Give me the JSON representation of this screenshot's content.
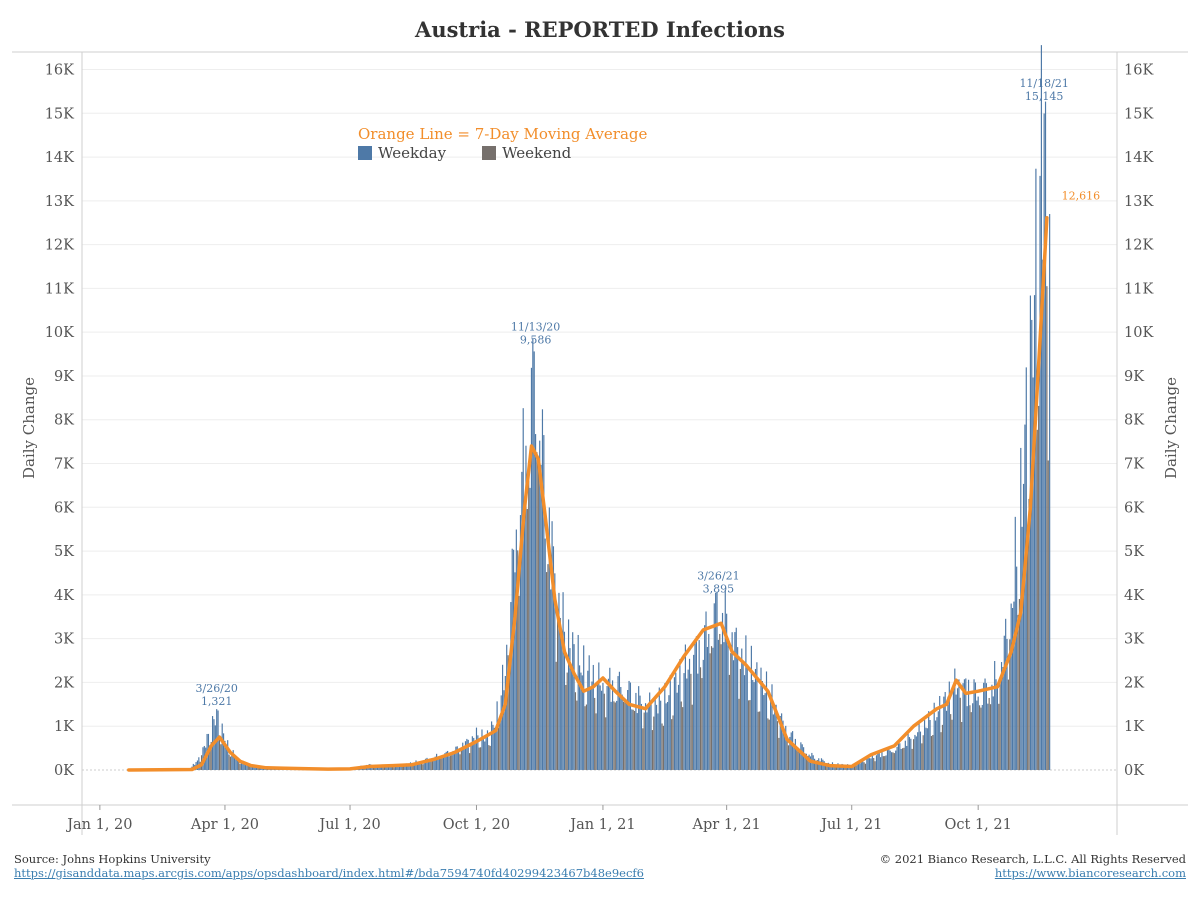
{
  "header": {
    "title": "Austria - REPORTED Infections"
  },
  "legend": {
    "title": "Orange Line = 7-Day Moving Average",
    "items": [
      {
        "label": "Weekday",
        "color": "#4e79a7"
      },
      {
        "label": "Weekend",
        "color": "#76706c"
      }
    ]
  },
  "footer": {
    "source_label": "Source: Johns Hopkins University",
    "source_link": "https://gisanddata.maps.arcgis.com/apps/opsdashboard/index.html#/bda7594740fd40299423467b48e9ecf6",
    "copyright": "© 2021 Bianco Research, L.L.C. All Rights Reserved",
    "site_link": "https://www.biancoresearch.com"
  },
  "chart_data": {
    "type": "bar",
    "title": "Austria - REPORTED Infections",
    "ylabel": "Daily Change",
    "ylabel_right": "Daily Change",
    "ylim": [
      -800,
      16400
    ],
    "y_ticks": [
      0,
      1000,
      2000,
      3000,
      4000,
      5000,
      6000,
      7000,
      8000,
      9000,
      10000,
      11000,
      12000,
      13000,
      14000,
      15000,
      16000
    ],
    "y_tick_labels": [
      "0K",
      "1K",
      "2K",
      "3K",
      "4K",
      "5K",
      "6K",
      "7K",
      "8K",
      "9K",
      "10K",
      "11K",
      "12K",
      "13K",
      "14K",
      "15K",
      "16K"
    ],
    "x_range": [
      "2019-12-19",
      "2022-01-10"
    ],
    "x_ticks": [
      "2020-01-01",
      "2020-04-01",
      "2020-07-01",
      "2020-10-01",
      "2021-01-01",
      "2021-04-01",
      "2021-07-01",
      "2021-10-01"
    ],
    "x_tick_labels": [
      "Jan 1, 20",
      "Apr 1, 20",
      "Jul 1, 20",
      "Oct 1, 20",
      "Jan 1, 21",
      "Apr 1, 21",
      "Jul 1, 21",
      "Oct 1, 21"
    ],
    "grid": true,
    "legend_position": "top-center",
    "colors": {
      "weekday": "#4e79a7",
      "weekend": "#76706c",
      "moving_average": "#f28e2b"
    },
    "series": [
      {
        "name": "Weekday",
        "kind": "daily bars (estimated envelope)",
        "x": [
          "2020-01-22",
          "2020-03-05",
          "2020-03-12",
          "2020-03-19",
          "2020-03-26",
          "2020-04-02",
          "2020-04-09",
          "2020-04-16",
          "2020-04-23",
          "2020-05-01",
          "2020-05-15",
          "2020-06-01",
          "2020-06-15",
          "2020-07-01",
          "2020-07-15",
          "2020-08-01",
          "2020-08-15",
          "2020-09-01",
          "2020-09-15",
          "2020-10-01",
          "2020-10-08",
          "2020-10-15",
          "2020-10-22",
          "2020-10-29",
          "2020-11-05",
          "2020-11-13",
          "2020-11-20",
          "2020-11-27",
          "2020-12-04",
          "2020-12-11",
          "2020-12-18",
          "2021-01-01",
          "2021-01-15",
          "2021-02-01",
          "2021-02-15",
          "2021-03-01",
          "2021-03-15",
          "2021-03-26",
          "2021-04-05",
          "2021-04-15",
          "2021-05-01",
          "2021-05-15",
          "2021-06-01",
          "2021-06-15",
          "2021-07-01",
          "2021-07-15",
          "2021-08-01",
          "2021-08-15",
          "2021-09-01",
          "2021-09-15",
          "2021-10-01",
          "2021-10-15",
          "2021-10-25",
          "2021-11-01",
          "2021-11-08",
          "2021-11-13",
          "2021-11-18",
          "2021-11-22"
        ],
        "values": [
          0,
          20,
          200,
          700,
          1321,
          600,
          280,
          150,
          90,
          60,
          40,
          40,
          20,
          40,
          120,
          100,
          150,
          300,
          450,
          800,
          750,
          1100,
          2300,
          5300,
          7200,
          9586,
          6500,
          4500,
          3200,
          2700,
          2300,
          2000,
          2000,
          1500,
          1600,
          2300,
          3000,
          3895,
          3100,
          2500,
          1800,
          900,
          350,
          150,
          100,
          300,
          500,
          800,
          1300,
          2000,
          1800,
          2100,
          3700,
          6000,
          9500,
          12000,
          15145,
          12000
        ]
      },
      {
        "name": "7-Day Moving Average",
        "x": [
          "2020-01-22",
          "2020-03-08",
          "2020-03-15",
          "2020-03-22",
          "2020-03-28",
          "2020-04-05",
          "2020-04-12",
          "2020-04-20",
          "2020-05-01",
          "2020-05-15",
          "2020-06-01",
          "2020-06-15",
          "2020-07-01",
          "2020-07-15",
          "2020-08-01",
          "2020-08-15",
          "2020-09-01",
          "2020-09-15",
          "2020-10-01",
          "2020-10-15",
          "2020-10-22",
          "2020-10-29",
          "2020-11-05",
          "2020-11-10",
          "2020-11-15",
          "2020-11-20",
          "2020-11-27",
          "2020-12-04",
          "2020-12-11",
          "2020-12-18",
          "2020-12-25",
          "2021-01-01",
          "2021-01-10",
          "2021-01-20",
          "2021-02-01",
          "2021-02-15",
          "2021-03-01",
          "2021-03-15",
          "2021-03-28",
          "2021-04-05",
          "2021-04-15",
          "2021-05-01",
          "2021-05-15",
          "2021-06-01",
          "2021-06-15",
          "2021-07-01",
          "2021-07-15",
          "2021-08-01",
          "2021-08-15",
          "2021-09-01",
          "2021-09-08",
          "2021-09-15",
          "2021-09-22",
          "2021-10-01",
          "2021-10-15",
          "2021-10-25",
          "2021-11-01",
          "2021-11-08",
          "2021-11-15",
          "2021-11-20"
        ],
        "values": [
          0,
          10,
          120,
          550,
          750,
          400,
          200,
          100,
          50,
          40,
          30,
          20,
          25,
          80,
          100,
          120,
          250,
          400,
          650,
          900,
          1500,
          3500,
          6000,
          7400,
          7100,
          5800,
          3900,
          2700,
          2200,
          1800,
          1900,
          2100,
          1800,
          1500,
          1400,
          1900,
          2600,
          3200,
          3350,
          2700,
          2400,
          1800,
          700,
          200,
          100,
          80,
          350,
          550,
          1000,
          1400,
          1500,
          2050,
          1750,
          1800,
          1900,
          2700,
          3600,
          6000,
          9800,
          12616
        ]
      }
    ],
    "annotations": [
      {
        "date_label": "3/26/20",
        "value_label": "1,321",
        "x": "2020-03-26",
        "y": 1321
      },
      {
        "date_label": "11/13/20",
        "value_label": "9,586",
        "x": "2020-11-13",
        "y": 9586
      },
      {
        "date_label": "3/26/21",
        "value_label": "3,895",
        "x": "2021-03-26",
        "y": 3895
      },
      {
        "date_label": "11/18/21",
        "value_label": "15,145",
        "x": "2021-11-18",
        "y": 15145
      },
      {
        "date_label": "",
        "value_label": "12,616",
        "x": "2021-11-22",
        "y": 12616
      }
    ]
  }
}
